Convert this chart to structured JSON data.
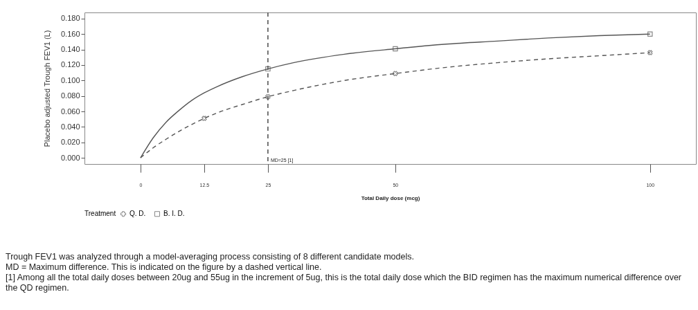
{
  "chart_data": {
    "type": "line",
    "xlabel": "Total Daily dose (mcg)",
    "ylabel": "Placebo adjusted Trough FEV1 (L)",
    "legend_title": "Treatment",
    "legend": "bottom",
    "grid": false,
    "xlim": [
      -11,
      109
    ],
    "xticks": [
      0,
      12.5,
      25,
      50,
      100
    ],
    "ylim": [
      -0.008,
      0.188
    ],
    "yticks": [
      {
        "value": 0,
        "label": "0.000"
      },
      {
        "value": 0.02,
        "label": "0.020"
      },
      {
        "value": 0.04,
        "label": "0.040"
      },
      {
        "value": 0.06,
        "label": "0.060"
      },
      {
        "value": 0.08,
        "label": "0.080"
      },
      {
        "value": 0.1,
        "label": "0.100"
      },
      {
        "value": 0.12,
        "label": "0.120"
      },
      {
        "value": 0.14,
        "label": "0.140"
      },
      {
        "value": 0.16,
        "label": "0.160"
      },
      {
        "value": 0.18,
        "label": "0.180"
      }
    ],
    "series": [
      {
        "type": "line",
        "color": "#555555",
        "line_style": "solid",
        "marker": "none",
        "x": [
          0,
          2.5,
          5,
          7.5,
          10,
          12.5,
          15,
          20,
          25,
          30,
          40,
          50,
          60,
          70,
          80,
          90,
          100
        ],
        "values": [
          0,
          0.026,
          0.046,
          0.061,
          0.074,
          0.084,
          0.092,
          0.105,
          0.115,
          0.123,
          0.134,
          0.141,
          0.147,
          0.151,
          0.155,
          0.158,
          0.16
        ]
      },
      {
        "type": "line",
        "color": "#555555",
        "line_style": "dashed",
        "marker": "none",
        "x": [
          0,
          2.5,
          5,
          7.5,
          10,
          12.5,
          15,
          20,
          25,
          30,
          40,
          50,
          60,
          70,
          80,
          90,
          100
        ],
        "values": [
          0,
          0.013,
          0.024,
          0.034,
          0.043,
          0.051,
          0.058,
          0.069,
          0.079,
          0.087,
          0.1,
          0.109,
          0.117,
          0.123,
          0.128,
          0.132,
          0.136
        ]
      },
      {
        "type": "scatter",
        "name": "Q. D.",
        "color": "#555555",
        "marker": "cross",
        "x": [
          12.5,
          25,
          50,
          100
        ],
        "values": [
          0.051,
          0.079,
          0.109,
          0.136
        ]
      },
      {
        "type": "scatter",
        "name": "B. I. D.",
        "color": "#555555",
        "marker": "square",
        "x": [
          25,
          50,
          100
        ],
        "values": [
          0.115,
          0.141,
          0.16
        ]
      }
    ],
    "ref_lines": [
      {
        "axis": "x",
        "value": 25,
        "label": "MD=25 [1]",
        "line_style": "dashed",
        "color": "#555555"
      }
    ],
    "annotations": [
      "Trough FEV1 was analyzed through a model-averaging process consisting of 8 different candidate models.",
      "MD = Maximum difference. This is indicated on the figure by a dashed vertical line.",
      "[1] Among all the total daily doses between 20ug and 55ug in the increment of 5ug, this is the total daily dose which the BID regimen has the maximum numerical difference over the QD regimen."
    ]
  }
}
